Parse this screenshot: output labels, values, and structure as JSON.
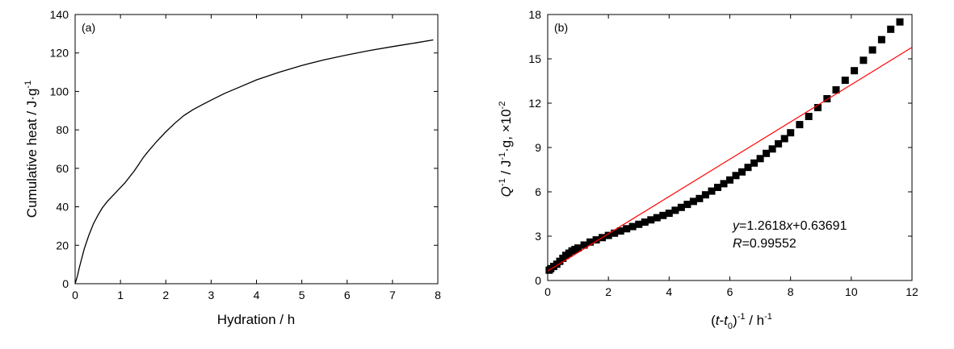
{
  "chart_data": [
    {
      "type": "line",
      "panel_label": "(a)",
      "xlabel": "Hydration / h",
      "ylabel_main": "Cumulative heat / J·g",
      "ylabel_sup": "-1",
      "xlim": [
        0,
        8
      ],
      "ylim": [
        0,
        140
      ],
      "xticks": [
        "0",
        "1",
        "2",
        "3",
        "4",
        "5",
        "6",
        "7",
        "8"
      ],
      "yticks": [
        "0",
        "20",
        "40",
        "60",
        "80",
        "100",
        "120",
        "140"
      ],
      "grid": false,
      "series": [
        {
          "x": [
            0,
            0.05,
            0.1,
            0.2,
            0.3,
            0.4,
            0.5,
            0.6,
            0.7,
            0.8,
            0.9,
            1.0,
            1.1,
            1.2,
            1.3,
            1.4,
            1.5,
            1.6,
            1.8,
            2.0,
            2.2,
            2.4,
            2.6,
            2.8,
            3.0,
            3.3,
            3.6,
            4.0,
            4.5,
            5.0,
            5.5,
            6.0,
            6.5,
            7.0,
            7.5,
            7.9
          ],
          "y": [
            0,
            4,
            9,
            18,
            25,
            31,
            35.5,
            39.5,
            42.5,
            45,
            47.5,
            50,
            52.5,
            55.5,
            58.5,
            62,
            65.5,
            68.5,
            74,
            79,
            83.5,
            87.5,
            90.5,
            93,
            95.5,
            99,
            102,
            106,
            110,
            113.5,
            116.5,
            119,
            121.3,
            123.3,
            125.2,
            126.8
          ]
        }
      ]
    },
    {
      "type": "scatter",
      "panel_label": "(b)",
      "xlabel_parts": [
        "(",
        "t",
        "-",
        "t",
        "0",
        ")",
        "-1",
        " / h",
        "-1"
      ],
      "ylabel_parts": [
        "Q",
        "-1",
        " / J",
        "-1",
        "·g, ×10",
        "-2"
      ],
      "xlim": [
        0,
        12
      ],
      "ylim": [
        0,
        18
      ],
      "xticks": [
        "0",
        "2",
        "4",
        "6",
        "8",
        "10",
        "12"
      ],
      "yticks": [
        "0",
        "3",
        "6",
        "9",
        "12",
        "15",
        "18"
      ],
      "grid": false,
      "fit_line": {
        "slope": 1.2618,
        "intercept": 0.63691,
        "color": "#ff0000"
      },
      "annotation": {
        "eq_var_y": "y",
        "eq_mid": "=1.2618",
        "eq_var_x": "x",
        "eq_tail": "+0.63691",
        "r_var": "R",
        "r_val": "=0.99552"
      },
      "series": [
        {
          "marker": "square",
          "color": "#000000",
          "x": [
            0.05,
            0.1,
            0.2,
            0.3,
            0.4,
            0.5,
            0.6,
            0.7,
            0.8,
            0.9,
            1.0,
            1.2,
            1.4,
            1.6,
            1.8,
            2.0,
            2.2,
            2.4,
            2.6,
            2.8,
            3.0,
            3.2,
            3.4,
            3.6,
            3.8,
            4.0,
            4.2,
            4.4,
            4.6,
            4.8,
            5.0,
            5.2,
            5.4,
            5.6,
            5.8,
            6.0,
            6.2,
            6.4,
            6.6,
            6.8,
            7.0,
            7.2,
            7.4,
            7.6,
            7.8,
            8.0,
            8.3,
            8.6,
            8.9,
            9.2,
            9.5,
            9.8,
            10.1,
            10.4,
            10.7,
            11.0,
            11.3,
            11.6
          ],
          "y": [
            0.7,
            0.8,
            0.95,
            1.1,
            1.3,
            1.5,
            1.7,
            1.85,
            2.0,
            2.1,
            2.2,
            2.4,
            2.6,
            2.75,
            2.9,
            3.05,
            3.2,
            3.35,
            3.5,
            3.65,
            3.8,
            3.95,
            4.1,
            4.25,
            4.4,
            4.55,
            4.75,
            4.95,
            5.15,
            5.35,
            5.55,
            5.8,
            6.05,
            6.3,
            6.55,
            6.8,
            7.1,
            7.35,
            7.65,
            7.95,
            8.25,
            8.6,
            8.9,
            9.25,
            9.6,
            10.0,
            10.55,
            11.1,
            11.7,
            12.3,
            12.9,
            13.55,
            14.2,
            14.9,
            15.6,
            16.3,
            17.0,
            17.5
          ]
        }
      ]
    }
  ]
}
